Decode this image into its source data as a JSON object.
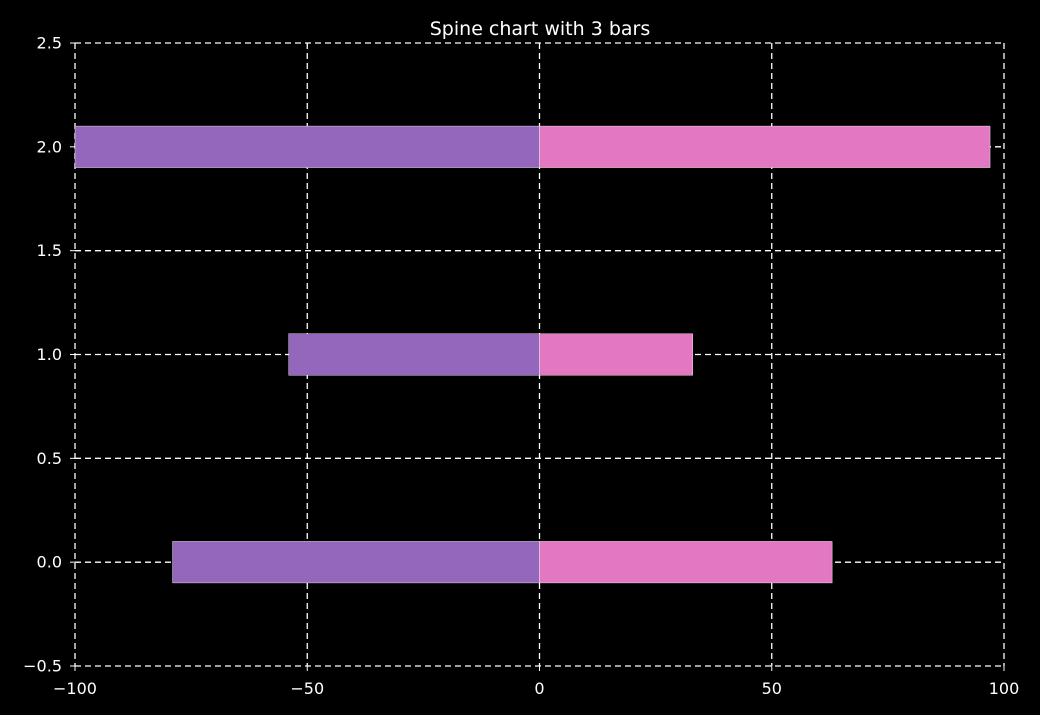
{
  "chart_data": {
    "type": "bar",
    "orientation": "horizontal",
    "stacked": "diverging",
    "title": "Spine chart with 3 bars",
    "xlabel": "",
    "ylabel": "",
    "xlim": [
      -100,
      100
    ],
    "ylim": [
      -0.5,
      2.5
    ],
    "xticks": [
      -100,
      -50,
      0,
      50,
      100
    ],
    "xtick_labels": [
      "−100",
      "−50",
      "0",
      "50",
      "100"
    ],
    "yticks": [
      -0.5,
      0.0,
      0.5,
      1.0,
      1.5,
      2.0,
      2.5
    ],
    "ytick_labels": [
      "−0.5",
      "0.0",
      "0.5",
      "1.0",
      "1.5",
      "2.0",
      "2.5"
    ],
    "categories": [
      0,
      1,
      2
    ],
    "series": [
      {
        "values": [
          -79,
          -54,
          -100
        ],
        "color": "#9467bd"
      },
      {
        "values": [
          63,
          33,
          97
        ],
        "color": "#e377c2"
      }
    ],
    "grid": true,
    "background": "#000000",
    "foreground": "#ffffff"
  }
}
